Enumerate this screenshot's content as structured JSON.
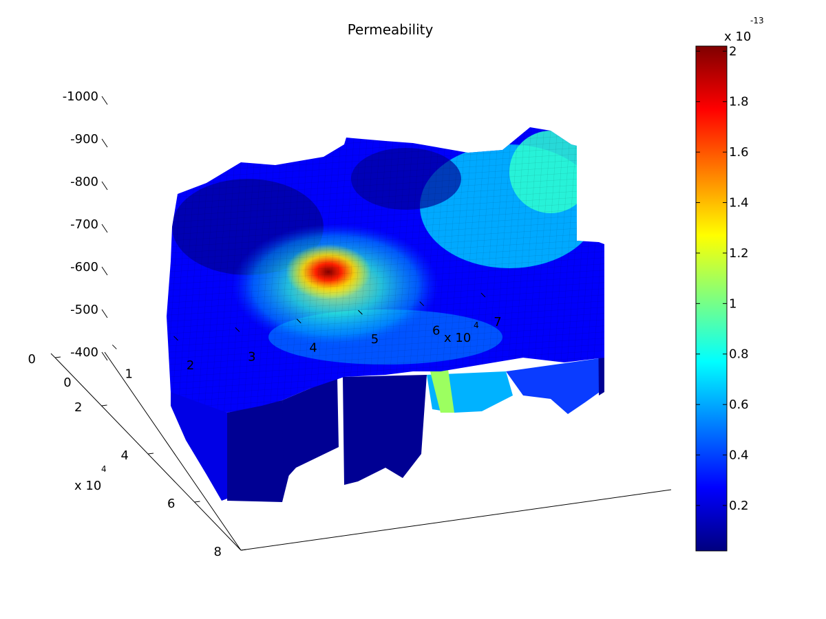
{
  "chart_data": {
    "type": "surface3d",
    "title": "Permeability",
    "colormap": "jet",
    "colors": {
      "jet": [
        "#00007f",
        "#0000ff",
        "#007fff",
        "#00ffff",
        "#7fff7f",
        "#ffff00",
        "#ff7f00",
        "#ff0000",
        "#7f0000"
      ],
      "axis": "#000000",
      "background": "#ffffff"
    },
    "z_axis": {
      "ticks": [
        -1000,
        -900,
        -800,
        -700,
        -600,
        -500,
        -400
      ],
      "tick_labels": [
        "-1000",
        "-900",
        "-800",
        "-700",
        "-600",
        "-500",
        "-400"
      ],
      "direction": "reversed",
      "range": [
        -1000,
        -400
      ]
    },
    "y_axis": {
      "ticks": [
        0,
        2,
        4,
        6,
        8
      ],
      "tick_labels": [
        "0",
        "2",
        "4",
        "6",
        "8"
      ],
      "multiplier_base": "x 10",
      "multiplier_exp": "4",
      "range": [
        0,
        80000
      ]
    },
    "x_axis": {
      "ticks": [
        0,
        1,
        2,
        3,
        4,
        5,
        6,
        7
      ],
      "tick_labels": [
        "0",
        "1",
        "2",
        "3",
        "4",
        "5",
        "6",
        "7"
      ],
      "multiplier_base": "x 10",
      "multiplier_exp": "4",
      "range": [
        0,
        70000
      ]
    },
    "colorbar": {
      "ticks": [
        0.2,
        0.4,
        0.6,
        0.8,
        1.0,
        1.2,
        1.4,
        1.6,
        1.8,
        2.0
      ],
      "tick_labels": [
        "0.2",
        "0.4",
        "0.6",
        "0.8",
        "1",
        "1.2",
        "1.4",
        "1.6",
        "1.8",
        "2"
      ],
      "min": 0.02,
      "max": 2.02,
      "multiplier_base": "x 10",
      "multiplier_exp": "-13"
    },
    "surface": {
      "peak_value": 2.0,
      "peak_x": 32000,
      "peak_y": 33000,
      "peak_depth": -600,
      "typical_value": 0.2
    },
    "grid": false
  }
}
